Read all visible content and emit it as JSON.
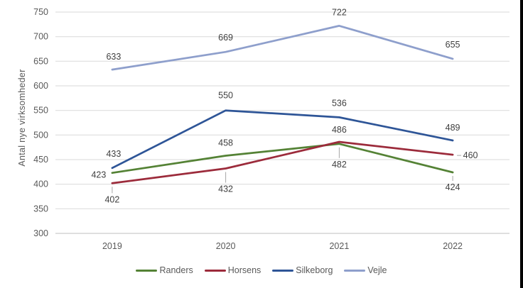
{
  "chart_data": {
    "type": "line",
    "categories": [
      "2019",
      "2020",
      "2021",
      "2022"
    ],
    "series": [
      {
        "name": "Randers",
        "color": "#548235",
        "values": [
          423,
          458,
          482,
          424
        ]
      },
      {
        "name": "Horsens",
        "color": "#9C2B3B",
        "values": [
          402,
          432,
          486,
          460
        ]
      },
      {
        "name": "Silkeborg",
        "color": "#2E5597",
        "values": [
          433,
          550,
          536,
          489
        ]
      },
      {
        "name": "Vejle",
        "color": "#8E9FCC",
        "values": [
          633,
          669,
          722,
          655
        ]
      }
    ],
    "title": "",
    "xlabel": "",
    "ylabel": "Antal nye virksomheder",
    "ylim": [
      300,
      750
    ],
    "ytick_step": 50,
    "grid": true,
    "legend_position": "bottom"
  },
  "colors": {
    "background": "#FFFFFF",
    "gridline": "#D9D9D9",
    "axis_line": "#BFBFBF",
    "tick_label": "#595959",
    "data_label": "#3F3F3F",
    "leader_line": "#A6A6A6",
    "window_edge": "#000000"
  }
}
